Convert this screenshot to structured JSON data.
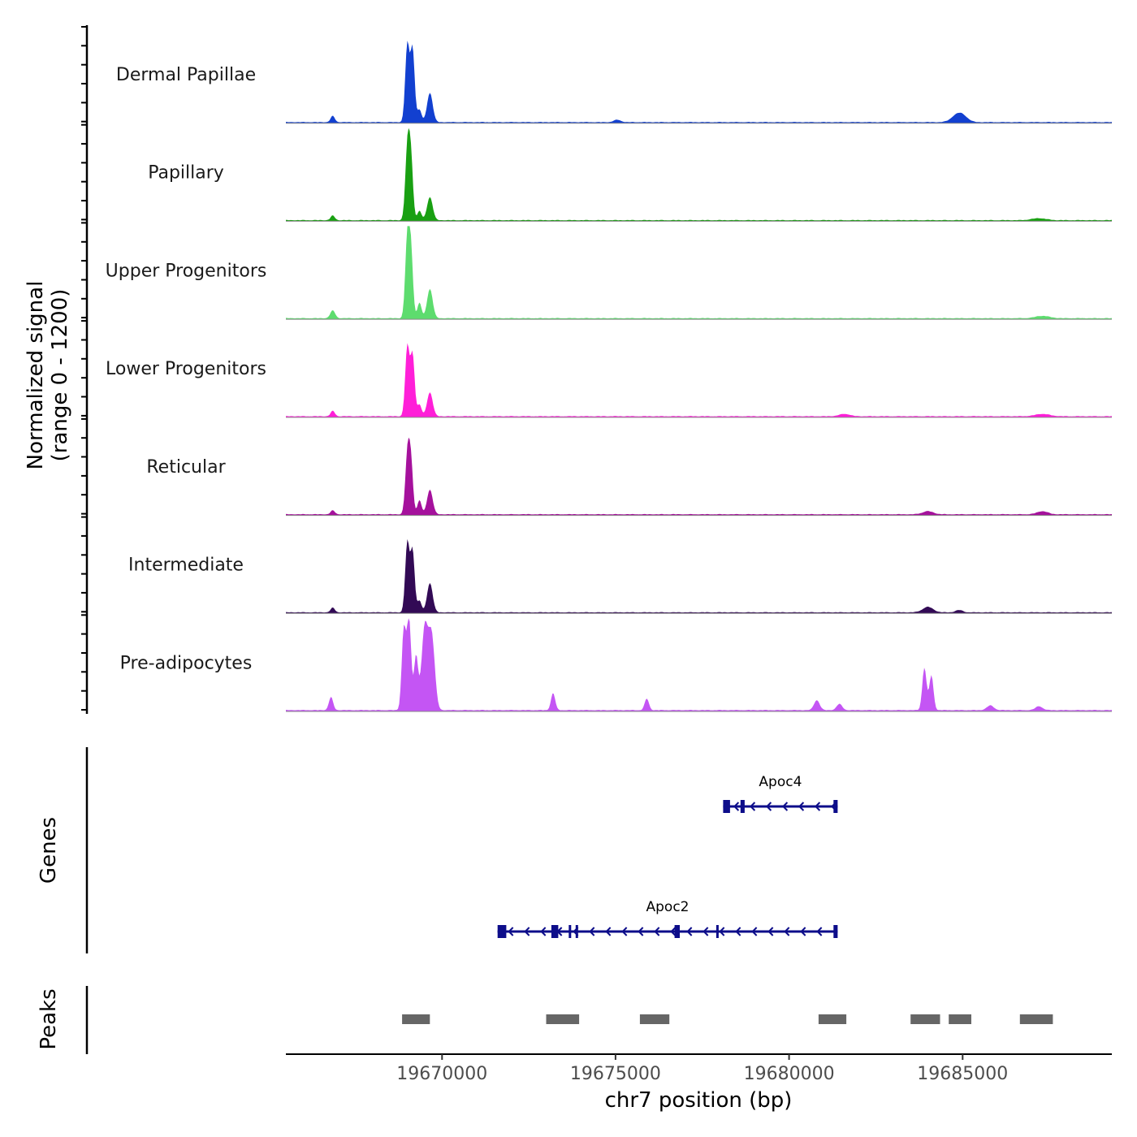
{
  "chart_data": {
    "type": "area",
    "title": "",
    "ylabel_line1": "Normalized signal",
    "ylabel_line2": "(range 0 - 1200)",
    "y_range": [
      0,
      1200
    ],
    "xlabel": "chr7 position (bp)",
    "xlim": [
      19665500,
      19689300
    ],
    "x_ticks": [
      19670000,
      19675000,
      19680000,
      19685000
    ],
    "x_tick_labels": [
      "19670000",
      "19675000",
      "19680000",
      "19685000"
    ],
    "tracks": [
      {
        "name": "Dermal Papillae",
        "color": "#1240d0",
        "baseline": 12,
        "peaks": [
          [
            19666850,
            80,
            60
          ],
          [
            19669000,
            1000,
            60
          ],
          [
            19669150,
            950,
            60
          ],
          [
            19669350,
            160,
            60
          ],
          [
            19669650,
            380,
            80
          ],
          [
            19675050,
            30,
            100
          ],
          [
            19684800,
            70,
            150
          ],
          [
            19685000,
            80,
            150
          ]
        ]
      },
      {
        "name": "Papillary",
        "color": "#19a012",
        "baseline": 12,
        "peaks": [
          [
            19666850,
            60,
            60
          ],
          [
            19669000,
            880,
            60
          ],
          [
            19669100,
            800,
            60
          ],
          [
            19669350,
            120,
            60
          ],
          [
            19669650,
            300,
            80
          ],
          [
            19687200,
            25,
            200
          ]
        ]
      },
      {
        "name": "Upper Progenitors",
        "color": "#5ddc6e",
        "baseline": 12,
        "peaks": [
          [
            19666850,
            100,
            70
          ],
          [
            19669000,
            1000,
            60
          ],
          [
            19669100,
            850,
            60
          ],
          [
            19669350,
            200,
            60
          ],
          [
            19669650,
            380,
            80
          ],
          [
            19687300,
            30,
            200
          ]
        ]
      },
      {
        "name": "Lower Progenitors",
        "color": "#ff1fd8",
        "baseline": 12,
        "peaks": [
          [
            19666850,
            70,
            60
          ],
          [
            19669000,
            900,
            60
          ],
          [
            19669150,
            800,
            60
          ],
          [
            19669350,
            150,
            60
          ],
          [
            19669650,
            310,
            80
          ],
          [
            19681600,
            30,
            150
          ],
          [
            19687300,
            30,
            200
          ]
        ]
      },
      {
        "name": "Reticular",
        "color": "#a5119c",
        "baseline": 12,
        "peaks": [
          [
            19666850,
            50,
            60
          ],
          [
            19669000,
            720,
            60
          ],
          [
            19669100,
            680,
            60
          ],
          [
            19669350,
            180,
            60
          ],
          [
            19669650,
            320,
            80
          ],
          [
            19684000,
            40,
            150
          ],
          [
            19687300,
            40,
            150
          ]
        ]
      },
      {
        "name": "Intermediate",
        "color": "#320a55",
        "baseline": 12,
        "peaks": [
          [
            19666850,
            60,
            60
          ],
          [
            19669000,
            900,
            60
          ],
          [
            19669150,
            800,
            60
          ],
          [
            19669350,
            150,
            60
          ],
          [
            19669650,
            380,
            80
          ],
          [
            19684000,
            70,
            150
          ],
          [
            19684900,
            30,
            100
          ]
        ]
      },
      {
        "name": "Pre-adipocytes",
        "color": "#c455f4",
        "baseline": 15,
        "peaks": [
          [
            19666800,
            170,
            60
          ],
          [
            19668900,
            1050,
            60
          ],
          [
            19669050,
            1180,
            60
          ],
          [
            19669250,
            700,
            60
          ],
          [
            19669500,
            1050,
            90
          ],
          [
            19669700,
            950,
            90
          ],
          [
            19673200,
            220,
            60
          ],
          [
            19675900,
            150,
            60
          ],
          [
            19680800,
            130,
            80
          ],
          [
            19681450,
            80,
            80
          ],
          [
            19683900,
            550,
            60
          ],
          [
            19684100,
            450,
            60
          ],
          [
            19685800,
            60,
            100
          ],
          [
            19687200,
            50,
            100
          ]
        ]
      }
    ],
    "genes": [
      {
        "name": "Apoc4",
        "start": 19678100,
        "end": 19681400,
        "strand": "-",
        "exons": [
          [
            19678100,
            19678300
          ],
          [
            19678600,
            19678720
          ],
          [
            19681280,
            19681400
          ]
        ]
      },
      {
        "name": "Apoc2",
        "start": 19671600,
        "end": 19681400,
        "strand": "-",
        "exons": [
          [
            19671600,
            19671850
          ],
          [
            19673150,
            19673350
          ],
          [
            19673650,
            19673720
          ],
          [
            19673850,
            19673900
          ],
          [
            19676700,
            19676850
          ],
          [
            19677900,
            19677950
          ],
          [
            19681280,
            19681400
          ]
        ]
      }
    ],
    "genes_label": "Genes",
    "peaks_label": "Peaks",
    "peak_regions": [
      [
        19668850,
        19669650
      ],
      [
        19673000,
        19673950
      ],
      [
        19675700,
        19676550
      ],
      [
        19680850,
        19681650
      ],
      [
        19683500,
        19684350
      ],
      [
        19684600,
        19685250
      ],
      [
        19686650,
        19687600
      ]
    ],
    "colors": {
      "gene": "#0d0d8a",
      "peak": "#666666",
      "baseline": "#888888",
      "axis": "#000000"
    }
  }
}
